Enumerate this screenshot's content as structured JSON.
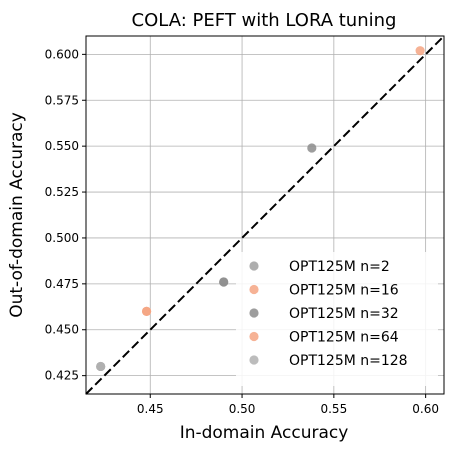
{
  "chart_data": {
    "type": "scatter",
    "title": "COLA: PEFT with LORA tuning",
    "xlabel": "In-domain Accuracy",
    "ylabel": "Out-of-domain Accuracy",
    "xlim": [
      0.415,
      0.61
    ],
    "ylim": [
      0.415,
      0.61
    ],
    "xticks": [
      0.45,
      0.5,
      0.55,
      0.6
    ],
    "xtick_labels": [
      "0.45",
      "0.50",
      "0.55",
      "0.60"
    ],
    "yticks": [
      0.425,
      0.45,
      0.475,
      0.5,
      0.525,
      0.55,
      0.575,
      0.6
    ],
    "ytick_labels": [
      "0.425",
      "0.450",
      "0.475",
      "0.500",
      "0.525",
      "0.550",
      "0.575",
      "0.600"
    ],
    "grid": true,
    "diagonal_line": {
      "from": [
        0.415,
        0.415
      ],
      "to": [
        0.61,
        0.61
      ],
      "style": "dashed",
      "color": "#000000"
    },
    "legend_position": "lower-right",
    "series": [
      {
        "name": "OPT125M n=2",
        "color": "#a0a0a0",
        "points": [
          {
            "x": 0.423,
            "y": 0.43
          },
          {
            "x": 0.49,
            "y": 0.476
          }
        ]
      },
      {
        "name": "OPT125M n=16",
        "color": "#f4a582",
        "points": [
          {
            "x": 0.448,
            "y": 0.46
          },
          {
            "x": 0.597,
            "y": 0.602
          }
        ]
      },
      {
        "name": "OPT125M n=32",
        "color": "#8c8c8c",
        "points": [
          {
            "x": 0.49,
            "y": 0.476
          },
          {
            "x": 0.538,
            "y": 0.549
          }
        ]
      },
      {
        "name": "OPT125M n=64",
        "color": "#f4a582",
        "points": [
          {
            "x": 0.448,
            "y": 0.46
          }
        ]
      },
      {
        "name": "OPT125M n=128",
        "color": "#b0b0b0",
        "points": [
          {
            "x": 0.423,
            "y": 0.43
          }
        ]
      }
    ]
  }
}
